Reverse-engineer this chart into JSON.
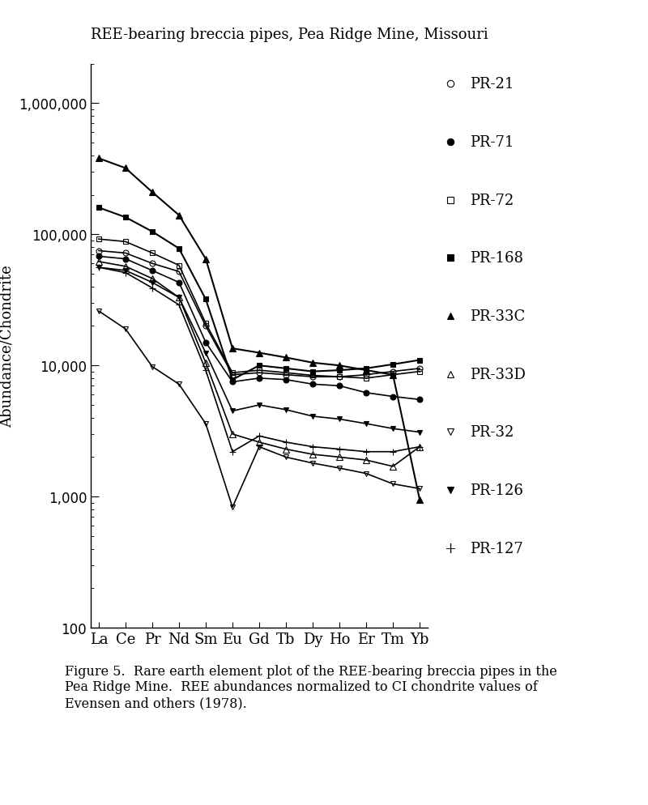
{
  "title": "REE-bearing breccia pipes, Pea Ridge Mine, Missouri",
  "ylabel": "Abundance/Chondrite",
  "elements": [
    "La",
    "Ce",
    "Pr",
    "Nd",
    "Sm",
    "Eu",
    "Gd",
    "Tb",
    "Dy",
    "Ho",
    "Er",
    "Tm",
    "Yb"
  ],
  "caption": "Figure 5.  Rare earth element plot of the REE-bearing breccia pipes in the\nPea Ridge Mine.  REE abundances normalized to CI chondrite values of\nEvensen and others (1978).",
  "series": [
    {
      "label": "PR-21",
      "marker": "o",
      "fillstyle": "none",
      "linewidth": 1.2,
      "markersize": 5,
      "values": [
        75000,
        72000,
        60000,
        52000,
        20000,
        8500,
        8800,
        8500,
        8200,
        8200,
        8500,
        9000,
        9500
      ]
    },
    {
      "label": "PR-71",
      "marker": "o",
      "fillstyle": "full",
      "linewidth": 1.2,
      "markersize": 5,
      "values": [
        68000,
        65000,
        53000,
        43000,
        15000,
        7500,
        8000,
        7800,
        7200,
        7000,
        6200,
        5800,
        5500
      ]
    },
    {
      "label": "PR-72",
      "marker": "s",
      "fillstyle": "none",
      "linewidth": 1.2,
      "markersize": 5,
      "values": [
        92000,
        88000,
        72000,
        58000,
        21000,
        8800,
        9200,
        8800,
        8400,
        8200,
        8000,
        8500,
        9000
      ]
    },
    {
      "label": "PR-168",
      "marker": "s",
      "fillstyle": "full",
      "linewidth": 1.5,
      "markersize": 5,
      "values": [
        160000,
        135000,
        105000,
        78000,
        32000,
        7800,
        10000,
        9500,
        9000,
        9200,
        9500,
        10200,
        11000
      ]
    },
    {
      "label": "PR-33C",
      "marker": "^",
      "fillstyle": "full",
      "linewidth": 1.5,
      "markersize": 6,
      "values": [
        380000,
        320000,
        210000,
        140000,
        65000,
        13500,
        12500,
        11500,
        10500,
        10000,
        9200,
        8500,
        950
      ]
    },
    {
      "label": "PR-33D",
      "marker": "^",
      "fillstyle": "none",
      "linewidth": 1.2,
      "markersize": 6,
      "values": [
        62000,
        57000,
        46000,
        33000,
        10500,
        3000,
        2600,
        2300,
        2100,
        2000,
        1900,
        1700,
        2400
      ]
    },
    {
      "label": "PR-32",
      "marker": "v",
      "fillstyle": "none",
      "linewidth": 1.2,
      "markersize": 5,
      "values": [
        26000,
        19000,
        9800,
        7200,
        3600,
        830,
        2400,
        2000,
        1800,
        1650,
        1500,
        1250,
        1150
      ]
    },
    {
      "label": "PR-126",
      "marker": "v",
      "fillstyle": "full",
      "linewidth": 1.2,
      "markersize": 5,
      "values": [
        56000,
        53000,
        43000,
        33000,
        12500,
        4500,
        5000,
        4600,
        4100,
        3900,
        3600,
        3300,
        3100
      ]
    },
    {
      "label": "PR-127",
      "marker": "+",
      "fillstyle": "full",
      "linewidth": 1.2,
      "markersize": 6,
      "values": [
        56000,
        51000,
        39000,
        29000,
        9200,
        2200,
        2900,
        2600,
        2400,
        2300,
        2200,
        2200,
        2400
      ]
    }
  ],
  "legend_entries": [
    {
      "label": "PR-21",
      "marker": "o",
      "fillstyle": "none"
    },
    {
      "label": "PR-71",
      "marker": "o",
      "fillstyle": "full"
    },
    {
      "label": "PR-72",
      "marker": "s",
      "fillstyle": "none"
    },
    {
      "label": "PR-168",
      "marker": "s",
      "fillstyle": "full"
    },
    {
      "label": "PR-33C",
      "marker": "^",
      "fillstyle": "full"
    },
    {
      "label": "PR-33D",
      "marker": "^",
      "fillstyle": "none"
    },
    {
      "label": "PR-32",
      "marker": "v",
      "fillstyle": "none"
    },
    {
      "label": "PR-126",
      "marker": "v",
      "fillstyle": "full"
    },
    {
      "label": "PR-127",
      "marker": "+",
      "fillstyle": "full"
    }
  ]
}
